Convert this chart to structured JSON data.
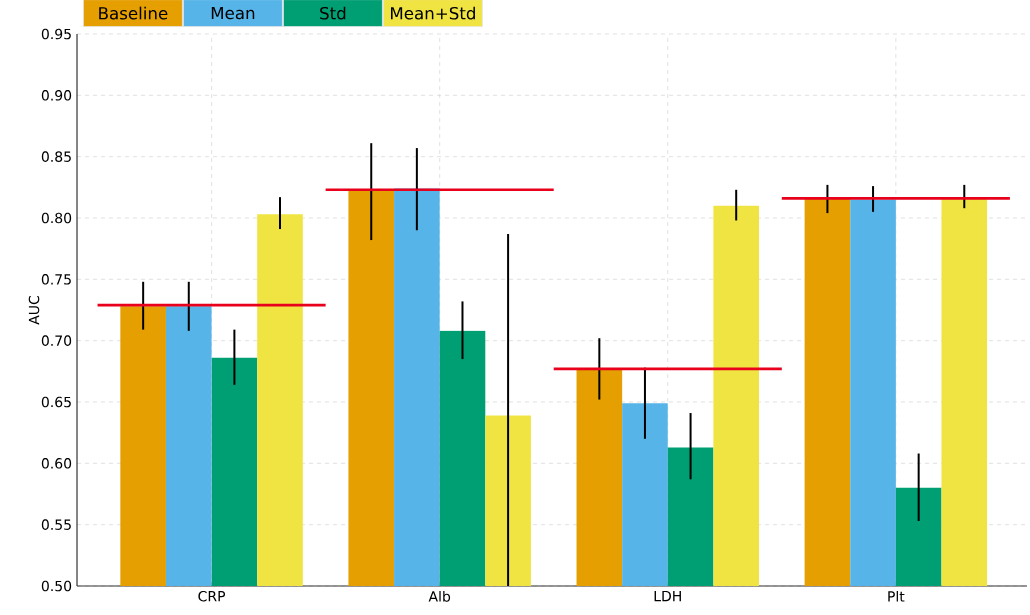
{
  "chart_data": {
    "type": "bar",
    "ylabel": "AUC",
    "categories": [
      "CRP",
      "Alb",
      "LDH",
      "Plt"
    ],
    "series": [
      {
        "name": "Baseline",
        "color": "#e59f00",
        "values": [
          0.728,
          0.822,
          0.677,
          0.816
        ],
        "errors": [
          [
            0.709,
            0.748
          ],
          [
            0.782,
            0.861
          ],
          [
            0.652,
            0.702
          ],
          [
            0.804,
            0.827
          ]
        ]
      },
      {
        "name": "Mean",
        "color": "#56b4e9",
        "values": [
          0.728,
          0.824,
          0.649,
          0.815
        ],
        "errors": [
          [
            0.708,
            0.748
          ],
          [
            0.79,
            0.857
          ],
          [
            0.62,
            0.678
          ],
          [
            0.805,
            0.826
          ]
        ]
      },
      {
        "name": "Std",
        "color": "#009e73",
        "values": [
          0.686,
          0.708,
          0.613,
          0.58
        ],
        "errors": [
          [
            0.664,
            0.709
          ],
          [
            0.685,
            0.732
          ],
          [
            0.587,
            0.641
          ],
          [
            0.553,
            0.608
          ]
        ]
      },
      {
        "name": "Mean+Std",
        "color": "#f0e442",
        "values": [
          0.803,
          0.639,
          0.81,
          0.817
        ],
        "errors": [
          [
            0.791,
            0.817
          ],
          [
            0.5,
            0.787
          ],
          [
            0.798,
            0.823
          ],
          [
            0.808,
            0.827
          ]
        ]
      }
    ],
    "ref_lines": [
      {
        "axis": "y",
        "value": 0.729,
        "color": "#e8001c"
      },
      {
        "axis": "y",
        "value": 0.823,
        "color": "#e8001c"
      },
      {
        "axis": "y",
        "value": 0.677,
        "color": "#e8001c"
      },
      {
        "axis": "y",
        "value": 0.816,
        "color": "#e8001c"
      }
    ],
    "ylim": [
      0.5,
      0.95
    ],
    "yticks": [
      {
        "value": 0.5,
        "label": "0.50"
      },
      {
        "value": 0.55,
        "label": "0.55"
      },
      {
        "value": 0.6,
        "label": "0.60"
      },
      {
        "value": 0.65,
        "label": "0.65"
      },
      {
        "value": 0.7,
        "label": "0.70"
      },
      {
        "value": 0.75,
        "label": "0.75"
      },
      {
        "value": 0.8,
        "label": "0.80"
      },
      {
        "value": 0.85,
        "label": "0.85"
      },
      {
        "value": 0.9,
        "label": "0.90"
      },
      {
        "value": 0.95,
        "label": "0.95"
      }
    ],
    "grid": true,
    "legend": "top left"
  }
}
